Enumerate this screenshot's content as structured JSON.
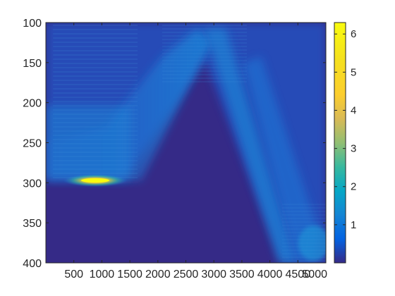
{
  "chart_data": {
    "type": "heatmap",
    "title": "",
    "xlabel": "",
    "ylabel": "",
    "xlim": [
      0,
      5000
    ],
    "ylim": [
      100,
      400
    ],
    "y_direction": "reversed",
    "x_ticks": [
      500,
      1000,
      1500,
      2000,
      2500,
      3000,
      3500,
      4000,
      4500,
      5000
    ],
    "x_tick_labels": [
      "500",
      "1000",
      "1500",
      "2000",
      "2500",
      "3000",
      "3500",
      "4000",
      "4500",
      "5000"
    ],
    "y_ticks": [
      100,
      150,
      200,
      250,
      300,
      350,
      400
    ],
    "y_tick_labels": [
      "100",
      "150",
      "200",
      "250",
      "300",
      "350",
      "400"
    ],
    "colormap": "parula",
    "colorbar": {
      "position": "right",
      "clim": [
        0,
        6.3
      ],
      "ticks": [
        1,
        2,
        3,
        4,
        5,
        6
      ],
      "tick_labels": [
        "1",
        "2",
        "3",
        "4",
        "5",
        "6"
      ]
    },
    "grid": false,
    "features": [
      {
        "description": "low-value region",
        "value": 0.05
      },
      {
        "description": "peak near x=900, y=295",
        "x": 900,
        "y": 295,
        "value": 6.3
      },
      {
        "description": "V-shaped band edge left",
        "from": [
          0,
          300
        ],
        "to": [
          2800,
          100
        ]
      },
      {
        "description": "V-shaped band edge right",
        "from": [
          2800,
          100
        ],
        "to": [
          4200,
          400
        ]
      }
    ]
  },
  "colors": {
    "low": "#352a87",
    "mid": "#1a83d6",
    "high": "#f9fb0e"
  }
}
